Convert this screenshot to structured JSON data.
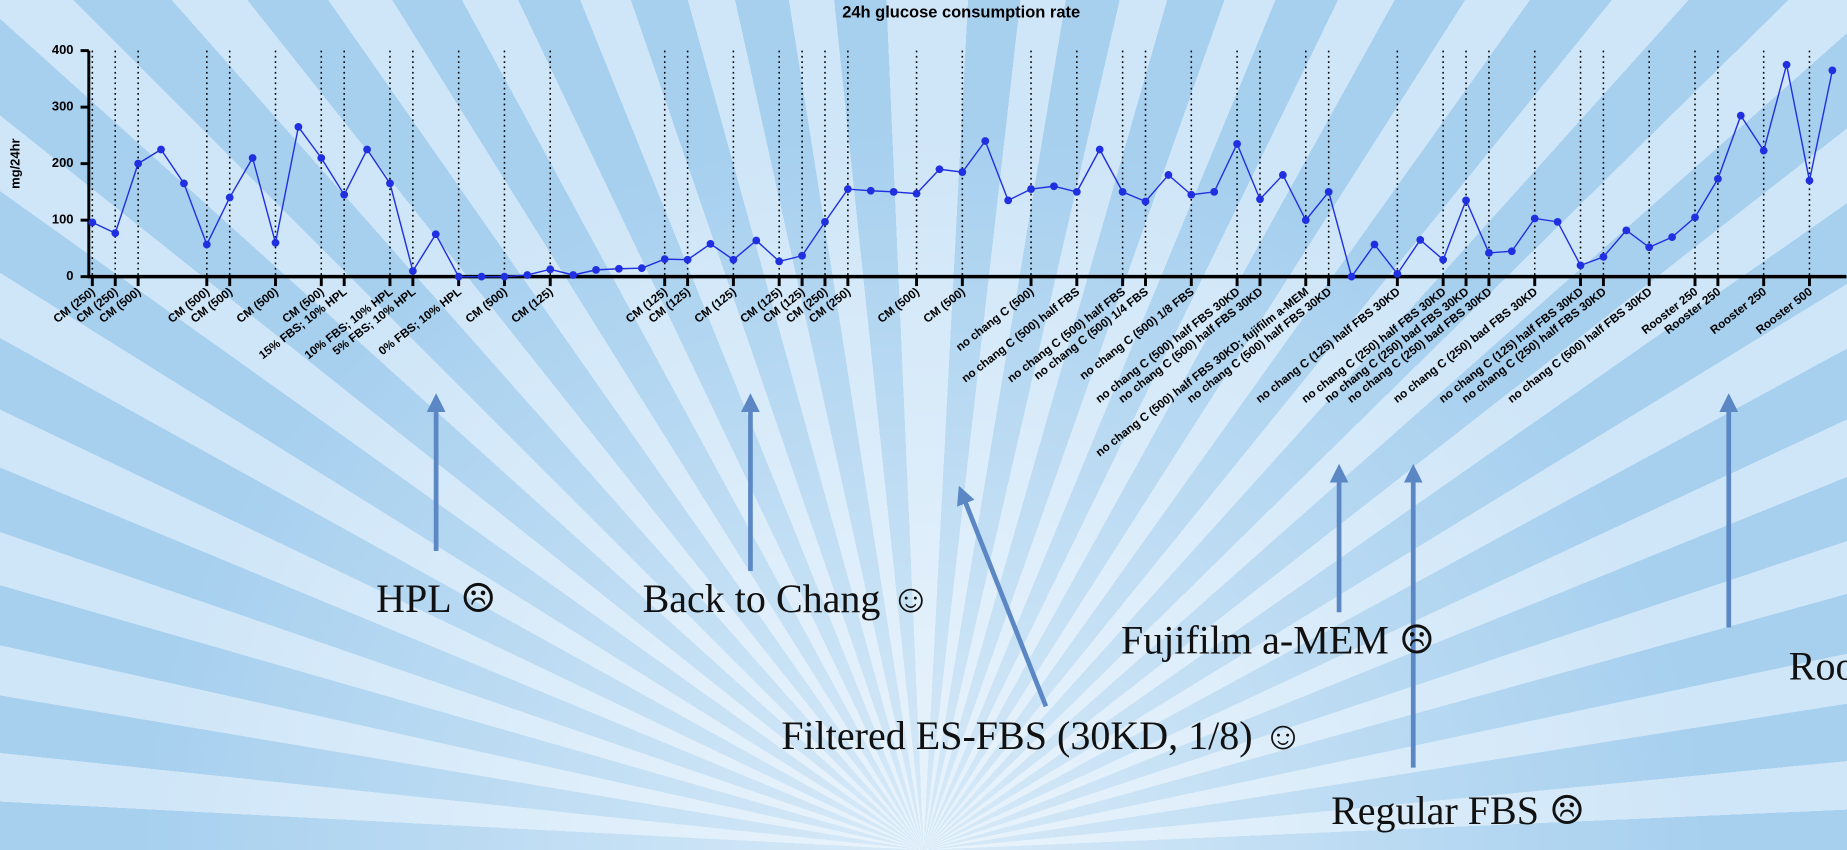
{
  "chart_data": {
    "type": "line",
    "title": "24h glucose consumption rate",
    "y_label": "mg/24hr",
    "categories": [
      "CM (250)",
      "CM (250)",
      "CM (500)",
      null,
      null,
      "CM (500)",
      "CM (500)",
      null,
      "CM (500)",
      null,
      "CM (500)",
      "15% FBS; 10% HPL",
      null,
      "10% FBS; 10% HPL",
      "5% FBS; 10% HPL",
      null,
      "0% FBS; 10% HPL",
      null,
      "CM (500)",
      null,
      "CM (125)",
      null,
      null,
      null,
      null,
      "CM (125)",
      "CM (125)",
      null,
      "CM (125)",
      null,
      "CM (125)",
      "CM (125)",
      "CM (250)",
      "CM (250)",
      null,
      null,
      "CM (500)",
      null,
      "CM (500)",
      null,
      null,
      "no chang C (500)",
      null,
      "no chang C (500) half FBS",
      null,
      "no chang C (500) half FBS",
      "no chang C (500) 1/4 FBS",
      null,
      "no chang C (500) 1/8 FBS",
      null,
      "no chang C (500) half FBS 30KD",
      "no chang C (500) half FBS 30KD",
      null,
      "no chang C (500) half FBS 30KD; fujifilm a-MEM",
      "no chang C (500) half FBS 30KD",
      null,
      null,
      "no chang C (125) half FBS 30KD",
      null,
      "no chang C (250) half FBS 30KD",
      "no chang C (250) bad FBS 30KD",
      "no chang C (250) bad FBS 30KD",
      null,
      "no chang C (250) bad FBS 30KD",
      null,
      "no chang C (125) half FBS 30KD",
      "no chang C (250) half FBS 30KD",
      null,
      "no chang C (500) half FBS 30KD",
      null,
      "Rooster 250",
      "Rooster 250",
      null,
      "Rooster 250",
      null,
      "Rooster 500",
      null
    ],
    "series": [
      {
        "color": "#2030e0",
        "values": [
          96,
          77,
          200,
          225,
          165,
          57,
          140,
          210,
          60,
          265,
          210,
          145,
          225,
          165,
          10,
          75,
          0,
          0,
          0,
          3,
          13,
          3,
          12,
          14,
          15,
          31,
          30,
          58,
          30,
          64,
          27,
          37,
          97,
          155,
          152,
          150,
          147,
          190,
          185,
          240,
          135,
          155,
          160,
          150,
          225,
          150,
          133,
          180,
          145,
          150,
          235,
          137,
          180,
          100,
          150,
          0,
          57,
          5,
          65,
          30,
          135,
          42,
          45,
          103,
          97,
          20,
          35,
          82,
          52,
          70,
          105,
          173,
          285,
          223,
          375,
          170,
          365
        ]
      }
    ],
    "ylim": [
      0,
      400
    ],
    "yticks": [
      0,
      100,
      200,
      300,
      400
    ]
  },
  "annotations": [
    "HPL ☹",
    "Back to Chang ☺",
    "Filtered ES-FBS (30KD, 1/8) ☺",
    "Fujifilm a-MEM ☹",
    "RoosterBio ☺",
    "Regular FBS ☹"
  ]
}
